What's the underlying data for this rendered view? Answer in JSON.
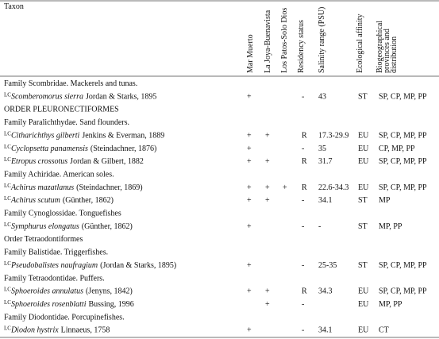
{
  "header": {
    "taxon": "Taxon",
    "columns": [
      "Mar Muerto",
      "La Joya-Buenavista",
      "Los Patos-Solo Dios",
      "Residency status",
      "Salinity range (PSU)",
      "Ecological affinity",
      [
        "Biogeographical",
        "provinces and",
        "distribution"
      ]
    ]
  },
  "rows": [
    {
      "label": "Family Scombridae. Mackerels and tunas."
    },
    {
      "status": "LC",
      "species": "Scomberomorus sierra",
      "author": "Jordan & Starks, 1895",
      "cells": [
        "+",
        null,
        null,
        "-",
        "43",
        "ST",
        "SP, CP, MP, PP"
      ]
    },
    {
      "label": "ORDER PLEURONECTIFORMES"
    },
    {
      "label": "Family Paralichthydae. Sand flounders."
    },
    {
      "status": "LC",
      "species": "Citharichthys gilberti",
      "author": "Jenkins & Everman, 1889",
      "cells": [
        "+",
        "+",
        null,
        "R",
        "17.3-29.9",
        "EU",
        "SP, CP, MP, PP"
      ]
    },
    {
      "status": "LC",
      "species": "Cyclopsetta panamensis",
      "author": "(Steindachner, 1876)",
      "cells": [
        "+",
        null,
        null,
        "-",
        "35",
        "EU",
        "CP, MP, PP"
      ]
    },
    {
      "status": "LC",
      "species": "Etropus crossotus",
      "author": "Jordan & Gilbert, 1882",
      "cells": [
        "+",
        "+",
        null,
        "R",
        "31.7",
        "EU",
        "SP, CP, MP, PP"
      ]
    },
    {
      "label": "Family Achiridae. American soles."
    },
    {
      "status": "LC",
      "species": "Achirus mazatlanus",
      "author": "(Steindachner, 1869)",
      "cells": [
        "+",
        "+",
        "+",
        "R",
        "22.6-34.3",
        "EU",
        "SP, CP, MP, PP"
      ]
    },
    {
      "status": "LC",
      "species": "Achirus scutum",
      "author": "(Günther, 1862)",
      "cells": [
        "+",
        "+",
        null,
        "-",
        "34.1",
        "ST",
        "MP"
      ]
    },
    {
      "label": "Family Cynoglossidae. Tonguefishes"
    },
    {
      "status": "LC",
      "species": "Symphurus elongatus",
      "author": "(Günther, 1862)",
      "cells": [
        "+",
        null,
        null,
        "-",
        "-",
        "ST",
        "MP, PP"
      ]
    },
    {
      "label": "Order Tetraodontiformes"
    },
    {
      "label": "Family Balistidae. Triggerfishes."
    },
    {
      "status": "LC",
      "species": "Pseudobalistes naufragium",
      "author": "(Jordan & Starks, 1895)",
      "cells": [
        "+",
        null,
        null,
        "-",
        "25-35",
        "ST",
        "SP, CP, MP, PP"
      ]
    },
    {
      "label": "Family Tetraodontidae. Puffers."
    },
    {
      "status": "LC",
      "species": "Sphoeroides annulatus",
      "author": "(Jenyns, 1842)",
      "cells": [
        "+",
        "+",
        null,
        "R",
        "34.3",
        "EU",
        "SP, CP, MP, PP"
      ]
    },
    {
      "status": "LC",
      "species": "Sphoeroides rosenblatti",
      "author": "Bussing, 1996",
      "cells": [
        null,
        "+",
        null,
        "-",
        null,
        "EU",
        "MP, PP"
      ]
    },
    {
      "label": "Family Diodontidae. Porcupinefishes."
    },
    {
      "status": "LC",
      "species": "Diodon hystrix",
      "author": "Linnaeus, 1758",
      "cells": [
        "+",
        null,
        null,
        "-",
        "34.1",
        "EU",
        "CT"
      ]
    }
  ]
}
